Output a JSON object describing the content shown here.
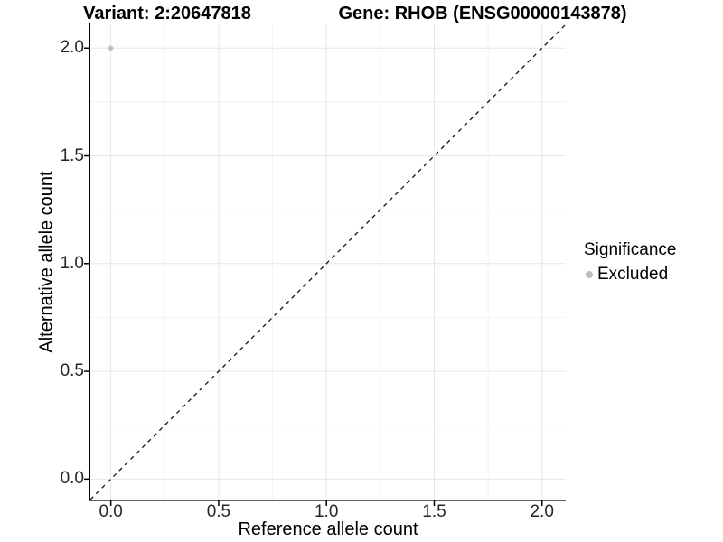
{
  "chart_data": {
    "type": "scatter",
    "title_left": "Variant: 2:20647818",
    "title_right": "Gene: RHOB (ENSG00000143878)",
    "xlabel": "Reference allele count",
    "ylabel": "Alternative allele count",
    "xlim": [
      -0.095,
      2.11
    ],
    "ylim": [
      -0.095,
      2.11
    ],
    "x_major_ticks": [
      0.0,
      0.5,
      1.0,
      1.5,
      2.0
    ],
    "x_tick_labels": [
      "0.0",
      "0.5",
      "1.0",
      "1.5",
      "2.0"
    ],
    "y_major_ticks": [
      0.0,
      0.5,
      1.0,
      1.5,
      2.0
    ],
    "y_tick_labels": [
      "0.0",
      "0.5",
      "1.0",
      "1.5",
      "2.0"
    ],
    "minor_ticks": [
      0.25,
      0.75,
      1.25,
      1.75
    ],
    "grid": true,
    "legend_position": "right",
    "series": [
      {
        "name": "Excluded",
        "color": "#bebebe",
        "points": [
          {
            "x": 0.0,
            "y": 2.0
          }
        ]
      }
    ],
    "reference_line": {
      "kind": "identity-diagonal",
      "style": "dashed",
      "color": "#111111"
    }
  },
  "legend": {
    "title": "Significance",
    "items": [
      {
        "label": "Excluded",
        "color": "#bebebe",
        "marker": "circle"
      }
    ]
  },
  "colors": {
    "background": "#ffffff",
    "grid_major": "#e6e6e6",
    "grid_minor": "#f2f2f2",
    "axis": "#000000",
    "tick": "#000000",
    "point": "#bebebe"
  }
}
